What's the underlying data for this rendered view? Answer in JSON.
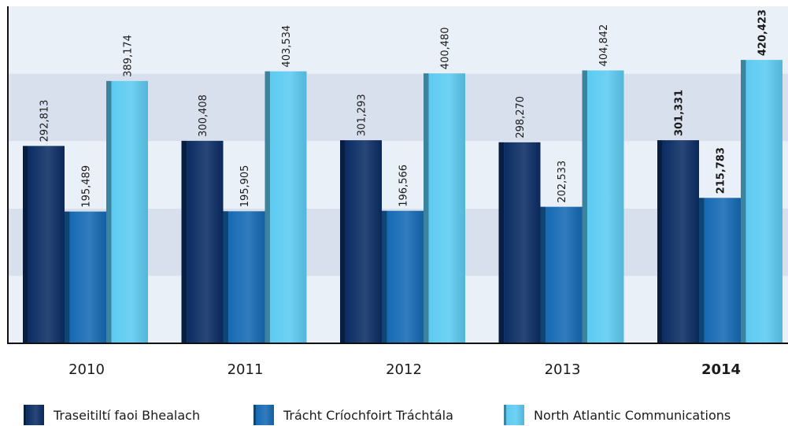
{
  "chart_data": {
    "type": "bar",
    "categories": [
      "2010",
      "2011",
      "2012",
      "2013",
      "2014"
    ],
    "bold": [
      false,
      false,
      false,
      false,
      true
    ],
    "series": [
      {
        "name": "Traseitiltí faoi Bhealach",
        "color": "#0b2d64",
        "values": [
          292813,
          300408,
          301293,
          298270,
          301331
        ],
        "value_labels": [
          "292,813",
          "300,408",
          "301,293",
          "298,270",
          "301,331"
        ]
      },
      {
        "name": "Trácht Críochfoirt Tráchtála",
        "color": "#156ab4",
        "values": [
          195489,
          195905,
          196566,
          202533,
          215783
        ],
        "value_labels": [
          "195,489",
          "195,905",
          "196,566",
          "202,533",
          "215,783"
        ]
      },
      {
        "name": "North Atlantic Communications",
        "color": "#5ccbf2",
        "values": [
          389174,
          403534,
          400480,
          404842,
          420423
        ],
        "value_labels": [
          "389,174",
          "403,534",
          "400,480",
          "404,842",
          "420,423"
        ]
      }
    ],
    "ylim": [
      0,
      500000
    ],
    "yticks": [
      0,
      100000,
      200000,
      300000,
      400000,
      500000
    ],
    "grid": true
  }
}
